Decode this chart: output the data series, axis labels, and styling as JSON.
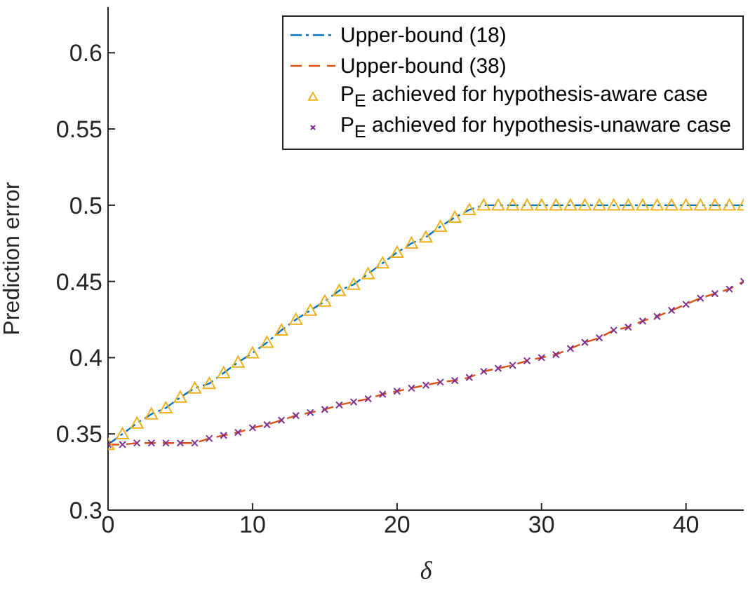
{
  "chart_data": {
    "type": "line",
    "xlabel": "δ",
    "ylabel": "Prediction error",
    "x": [
      0,
      1,
      2,
      3,
      4,
      5,
      6,
      7,
      8,
      9,
      10,
      11,
      12,
      13,
      14,
      15,
      16,
      17,
      18,
      19,
      20,
      21,
      22,
      23,
      24,
      25,
      26,
      27,
      28,
      29,
      30,
      31,
      32,
      33,
      34,
      35,
      36,
      37,
      38,
      39,
      40,
      41,
      42,
      43,
      44
    ],
    "xlim": [
      0,
      44
    ],
    "ylim": [
      0.3,
      0.63
    ],
    "xticks": [
      0,
      10,
      20,
      30,
      40
    ],
    "yticks": [
      0.3,
      0.35,
      0.4,
      0.45,
      0.5,
      0.55,
      0.6
    ],
    "grid": false,
    "legend": "top right",
    "series": [
      {
        "name": "Upper-bound (18)",
        "color": "#0072bd",
        "line_style": "dotted",
        "marker": "none",
        "values": [
          0.343,
          0.35,
          0.357,
          0.363,
          0.367,
          0.374,
          0.38,
          0.383,
          0.39,
          0.397,
          0.403,
          0.41,
          0.418,
          0.425,
          0.431,
          0.437,
          0.444,
          0.448,
          0.455,
          0.462,
          0.469,
          0.475,
          0.479,
          0.486,
          0.492,
          0.497,
          0.5,
          0.5,
          0.5,
          0.5,
          0.5,
          0.5,
          0.5,
          0.5,
          0.5,
          0.5,
          0.5,
          0.5,
          0.5,
          0.5,
          0.5,
          0.5,
          0.5,
          0.5,
          0.5
        ]
      },
      {
        "name": "Upper-bound (38)",
        "color": "#d95319",
        "line_style": "dashed",
        "marker": "none",
        "values": [
          0.343,
          0.343,
          0.344,
          0.344,
          0.344,
          0.344,
          0.344,
          0.347,
          0.349,
          0.351,
          0.354,
          0.356,
          0.359,
          0.362,
          0.364,
          0.366,
          0.369,
          0.371,
          0.373,
          0.376,
          0.378,
          0.38,
          0.382,
          0.384,
          0.385,
          0.387,
          0.391,
          0.393,
          0.395,
          0.398,
          0.4,
          0.402,
          0.406,
          0.41,
          0.413,
          0.418,
          0.42,
          0.424,
          0.427,
          0.431,
          0.435,
          0.439,
          0.442,
          0.445,
          0.45
        ]
      },
      {
        "type": "scatter",
        "name": "P$_{E}$ achieved for hypothesis-aware case",
        "color": "#edb120",
        "marker": "triangle",
        "values": [
          0.343,
          0.35,
          0.357,
          0.363,
          0.367,
          0.374,
          0.38,
          0.383,
          0.39,
          0.397,
          0.403,
          0.41,
          0.418,
          0.425,
          0.431,
          0.437,
          0.444,
          0.448,
          0.455,
          0.462,
          0.469,
          0.475,
          0.479,
          0.486,
          0.492,
          0.497,
          0.5,
          0.5,
          0.5,
          0.5,
          0.5,
          0.5,
          0.5,
          0.5,
          0.5,
          0.5,
          0.5,
          0.5,
          0.5,
          0.5,
          0.5,
          0.5,
          0.5,
          0.5,
          0.5
        ]
      },
      {
        "type": "scatter",
        "name": "P$_{E}$ achieved for hypothesis-unaware case",
        "color": "#7e2f8e",
        "marker": "cross",
        "values": [
          0.343,
          0.343,
          0.344,
          0.344,
          0.344,
          0.344,
          0.344,
          0.347,
          0.349,
          0.351,
          0.354,
          0.356,
          0.359,
          0.362,
          0.364,
          0.366,
          0.369,
          0.371,
          0.373,
          0.376,
          0.378,
          0.38,
          0.382,
          0.384,
          0.385,
          0.387,
          0.391,
          0.393,
          0.395,
          0.398,
          0.4,
          0.402,
          0.406,
          0.41,
          0.413,
          0.418,
          0.42,
          0.424,
          0.427,
          0.431,
          0.435,
          0.439,
          0.442,
          0.445,
          0.45
        ]
      }
    ]
  }
}
